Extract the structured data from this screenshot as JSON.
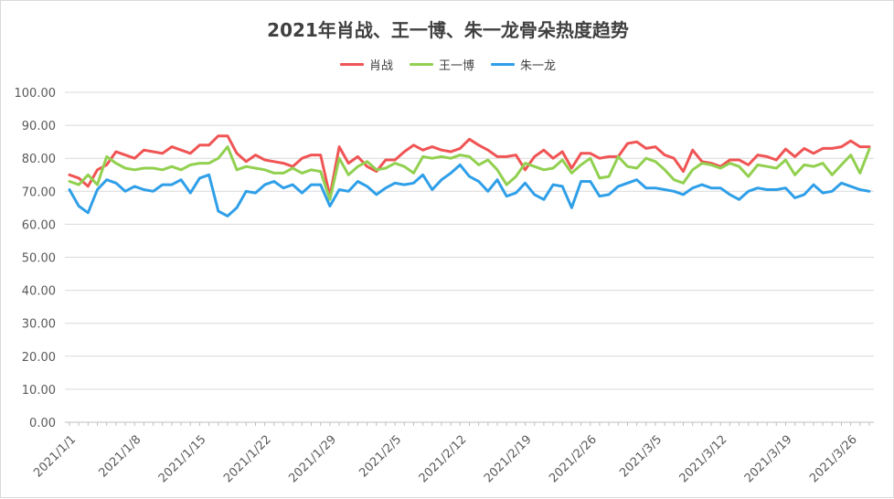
{
  "chart_data": {
    "type": "line",
    "title": "2021年肖战、王一博、朱一龙骨朵热度趋势",
    "xlabel": "",
    "ylabel": "",
    "ylim": [
      0,
      100
    ],
    "y_ticks": [
      "0.00",
      "10.00",
      "20.00",
      "30.00",
      "40.00",
      "50.00",
      "60.00",
      "70.00",
      "80.00",
      "90.00",
      "100.00"
    ],
    "x_tick_labels": [
      "2021/1/1",
      "2021/1/8",
      "2021/1/15",
      "2021/1/22",
      "2021/1/29",
      "2021/2/5",
      "2021/2/12",
      "2021/2/19",
      "2021/2/26",
      "2021/3/5",
      "2021/3/12",
      "2021/3/19",
      "2021/3/26"
    ],
    "x_tick_dates": [
      "2021-01-01",
      "2021-01-08",
      "2021-01-15",
      "2021-01-22",
      "2021-01-29",
      "2021-02-05",
      "2021-02-12",
      "2021-02-19",
      "2021-02-26",
      "2021-03-05",
      "2021-03-12",
      "2021-03-19",
      "2021-03-26"
    ],
    "x_start": "2021-01-01",
    "x_end": "2021-03-29",
    "grid": "horizontal",
    "legend_position": "top-center",
    "series": [
      {
        "name": "肖战",
        "color": "#f05454",
        "values": [
          75.0,
          74.0,
          71.5,
          76.5,
          78.0,
          82.0,
          81.0,
          80.0,
          82.5,
          82.0,
          81.5,
          83.5,
          82.5,
          81.5,
          84.0,
          84.0,
          86.8,
          86.8,
          81.5,
          79.0,
          81.0,
          79.5,
          79.0,
          78.5,
          77.5,
          80.0,
          81.0,
          81.0,
          68.5,
          83.5,
          78.5,
          80.5,
          77.5,
          76.0,
          79.5,
          79.5,
          82.0,
          84.0,
          82.5,
          83.5,
          82.5,
          82.0,
          83.0,
          85.8,
          84.0,
          82.5,
          80.5,
          80.5,
          81.0,
          76.5,
          80.5,
          82.5,
          80.0,
          82.0,
          77.0,
          81.5,
          81.5,
          80.0,
          80.5,
          80.5,
          84.5,
          85.0,
          83.0,
          83.5,
          81.0,
          80.0,
          76.0,
          82.5,
          79.0,
          78.5,
          77.5,
          79.5,
          79.5,
          78.0,
          81.0,
          80.5,
          79.5,
          82.8,
          80.5,
          83.0,
          81.5,
          83.0,
          83.0,
          83.5,
          85.3,
          83.5,
          83.5
        ]
      },
      {
        "name": "王一博",
        "color": "#92d050",
        "values": [
          73.0,
          72.0,
          75.0,
          72.0,
          80.5,
          78.5,
          77.0,
          76.5,
          77.0,
          77.0,
          76.5,
          77.5,
          76.5,
          78.0,
          78.5,
          78.5,
          80.0,
          83.5,
          76.5,
          77.5,
          77.0,
          76.5,
          75.5,
          75.5,
          77.0,
          75.5,
          76.5,
          76.0,
          67.5,
          80.0,
          75.0,
          77.5,
          79.0,
          76.5,
          77.0,
          78.5,
          77.5,
          75.5,
          80.5,
          80.0,
          80.5,
          80.0,
          81.0,
          80.5,
          78.0,
          79.5,
          76.5,
          72.0,
          74.5,
          78.5,
          77.5,
          76.5,
          77.0,
          79.5,
          75.5,
          78.0,
          80.0,
          74.0,
          74.5,
          80.5,
          77.5,
          77.0,
          80.0,
          79.0,
          76.5,
          73.5,
          72.5,
          76.5,
          78.5,
          78.0,
          77.0,
          78.5,
          77.5,
          74.5,
          78.0,
          77.5,
          77.0,
          79.5,
          75.0,
          78.0,
          77.5,
          78.5,
          75.0,
          78.0,
          81.0,
          75.5,
          82.8
        ]
      },
      {
        "name": "朱一龙",
        "color": "#2f9fe8",
        "values": [
          70.5,
          65.5,
          63.5,
          70.5,
          73.5,
          72.5,
          70.0,
          71.5,
          70.5,
          70.0,
          72.0,
          72.0,
          73.5,
          69.5,
          74.0,
          75.0,
          64.0,
          62.5,
          65.0,
          70.0,
          69.5,
          72.0,
          73.0,
          71.0,
          72.0,
          69.5,
          72.0,
          72.0,
          65.5,
          70.5,
          70.0,
          73.0,
          71.5,
          69.0,
          71.0,
          72.5,
          72.0,
          72.5,
          75.0,
          70.5,
          73.5,
          75.5,
          78.0,
          74.5,
          73.0,
          70.0,
          73.5,
          68.5,
          69.5,
          72.5,
          69.0,
          67.5,
          72.0,
          71.5,
          65.0,
          73.0,
          73.0,
          68.5,
          69.0,
          71.5,
          72.5,
          73.5,
          71.0,
          71.0,
          70.5,
          70.0,
          69.0,
          71.0,
          72.0,
          71.0,
          71.0,
          69.0,
          67.5,
          70.0,
          71.0,
          70.5,
          70.5,
          71.0,
          68.0,
          69.0,
          72.0,
          69.5,
          70.0,
          72.5,
          71.5,
          70.5,
          70.0
        ]
      }
    ]
  }
}
